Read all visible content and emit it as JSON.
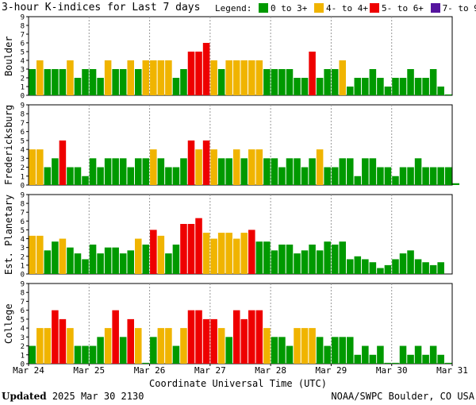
{
  "title": "3-hour K-indices for Last 7 days",
  "legend": {
    "label": "Legend:",
    "items": [
      {
        "label": "0 to 3+",
        "color": "#009900"
      },
      {
        "label": "4- to 4+",
        "color": "#f0b400"
      },
      {
        "label": "5- to 6+",
        "color": "#ee0000"
      },
      {
        "label": "7- to 9",
        "color": "#55149e"
      }
    ]
  },
  "footer": {
    "updated_label": "Updated",
    "updated_value": "2025 Mar 30 2130",
    "source": "NOAA/SWPC Boulder, CO USA"
  },
  "chart_data": {
    "type": "bar",
    "xlabel": "Coordinate Universal Time (UTC)",
    "x_ticks": [
      "Mar 24",
      "Mar 25",
      "Mar 26",
      "Mar 27",
      "Mar 28",
      "Mar 29",
      "Mar 30",
      "Mar 31"
    ],
    "ylim": [
      0,
      9
    ],
    "y_ticks": [
      0,
      1,
      2,
      3,
      4,
      5,
      6,
      7,
      8,
      9
    ],
    "bins_per_day": 8,
    "series": [
      {
        "name": "Boulder",
        "values": [
          3,
          4,
          3,
          3,
          3,
          4,
          2,
          3,
          3,
          2,
          4,
          3,
          3,
          4,
          3,
          4,
          4,
          4,
          4,
          2,
          3,
          5,
          5,
          6,
          4,
          3,
          4,
          4,
          4,
          4,
          4,
          3,
          3,
          3,
          3,
          2,
          2,
          5,
          2,
          3,
          3,
          4,
          1,
          2,
          2,
          3,
          2,
          1,
          2,
          2,
          3,
          2,
          2,
          3,
          1,
          0.1
        ]
      },
      {
        "name": "Fredericksburg",
        "values": [
          4,
          4,
          2,
          3,
          5,
          2,
          2,
          1,
          3,
          2,
          3,
          3,
          3,
          2,
          3,
          3,
          4,
          3,
          2,
          2,
          3,
          5,
          4,
          5,
          4,
          3,
          3,
          4,
          3,
          4,
          4,
          3,
          3,
          2,
          3,
          3,
          2,
          3,
          4,
          2,
          2,
          3,
          3,
          1,
          3,
          3,
          2,
          2,
          1,
          2,
          2,
          3,
          2,
          2,
          2,
          2,
          0.2
        ]
      },
      {
        "name": "Est. Planetary",
        "values": [
          4.33,
          4.33,
          2.67,
          3.67,
          4,
          3,
          2.33,
          1.67,
          3.33,
          2.33,
          3,
          3,
          2.33,
          2.67,
          4,
          3.33,
          5,
          4.33,
          2.33,
          3.33,
          5.67,
          5.67,
          6.33,
          4.67,
          4,
          4.67,
          4.67,
          4,
          4.67,
          5,
          3.67,
          3.67,
          2.67,
          3.33,
          3.33,
          2.33,
          2.67,
          3.33,
          2.67,
          3.67,
          3.33,
          3.67,
          1.67,
          2,
          1.67,
          1.33,
          0.67,
          1,
          1.67,
          2.33,
          2.67,
          1.67,
          1.33,
          1,
          1.33
        ]
      },
      {
        "name": "College",
        "values": [
          2,
          4,
          4,
          6,
          5,
          4,
          2,
          2,
          2,
          3,
          4,
          6,
          3,
          5,
          4,
          0.1,
          3,
          4,
          4,
          2,
          4,
          6,
          6,
          5,
          5,
          4,
          3,
          6,
          5,
          6,
          6,
          4,
          3,
          3,
          2,
          4,
          4,
          4,
          3,
          2,
          3,
          3,
          3,
          1,
          2,
          1,
          2,
          0.1,
          0.1,
          2,
          1,
          2,
          1,
          2,
          1,
          0.1
        ]
      }
    ]
  }
}
